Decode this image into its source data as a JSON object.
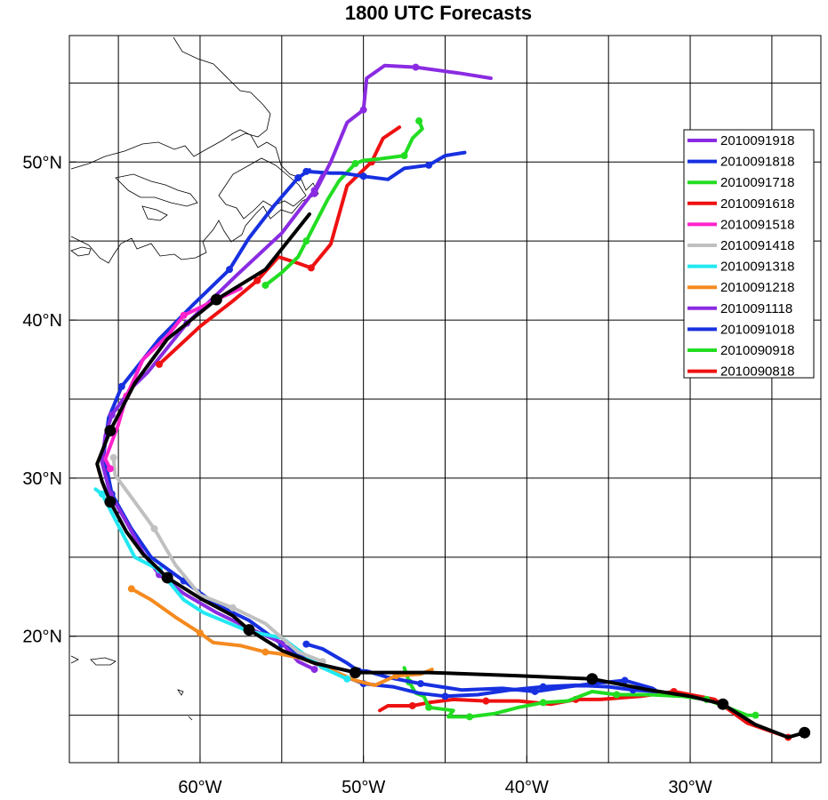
{
  "title": "1800 UTC Forecasts",
  "chart_data": {
    "type": "map-tracks",
    "region": "North Atlantic",
    "lon_range": [
      -68,
      -22
    ],
    "lat_range": [
      12,
      58
    ],
    "x_ticks": [
      {
        "lon": -60,
        "label": "60°W"
      },
      {
        "lon": -50,
        "label": "50°W"
      },
      {
        "lon": -40,
        "label": "40°W"
      },
      {
        "lon": -30,
        "label": "30°W"
      }
    ],
    "y_ticks": [
      {
        "lat": 20,
        "label": "20°N"
      },
      {
        "lat": 30,
        "label": "30°N"
      },
      {
        "lat": 40,
        "label": "40°N"
      },
      {
        "lat": 50,
        "label": "50°N"
      }
    ],
    "grid_lons": [
      -65,
      -60,
      -55,
      -50,
      -45,
      -40,
      -35,
      -30,
      -25
    ],
    "grid_lats": [
      15,
      20,
      25,
      30,
      35,
      40,
      45,
      50,
      55
    ],
    "best_track": {
      "color": "#000000",
      "points": [
        [
          -23,
          13.9
        ],
        [
          -24,
          13.6
        ],
        [
          -26,
          14.4
        ],
        [
          -28,
          15.7
        ],
        [
          -30,
          16.2
        ],
        [
          -32.5,
          16.6
        ],
        [
          -36,
          17.3
        ],
        [
          -40.5,
          17.5
        ],
        [
          -46,
          17.7
        ],
        [
          -50.5,
          17.7
        ],
        [
          -53,
          18.3
        ],
        [
          -55,
          19.1
        ],
        [
          -57,
          20.4
        ],
        [
          -58,
          21.3
        ],
        [
          -60,
          22.4
        ],
        [
          -62,
          23.7
        ],
        [
          -63.5,
          25.2
        ],
        [
          -64.5,
          26.6
        ],
        [
          -65.5,
          28.5
        ],
        [
          -66,
          29.8
        ],
        [
          -66.3,
          30.9
        ],
        [
          -65.5,
          33
        ],
        [
          -64,
          36
        ],
        [
          -62,
          38.8
        ],
        [
          -59,
          41.3
        ],
        [
          -56,
          43.2
        ],
        [
          -53.3,
          46.7
        ]
      ]
    },
    "legend_position": "right",
    "series": [
      {
        "name": "2010091918",
        "color": "#8a2be2",
        "points": [
          [
            -53,
            48
          ],
          [
            -52,
            50
          ],
          [
            -51,
            52.5
          ],
          [
            -50,
            53.3
          ],
          [
            -49.8,
            55.3
          ],
          [
            -48.7,
            56.1
          ],
          [
            -46.8,
            56
          ],
          [
            -44,
            55.6
          ],
          [
            -42.2,
            55.3
          ]
        ]
      },
      {
        "name": "2010091818",
        "color": "#1730e0",
        "points": [
          [
            -53.5,
            49.4
          ],
          [
            -52,
            49.3
          ],
          [
            -51.3,
            49.3
          ],
          [
            -50,
            49.1
          ],
          [
            -48.5,
            48.9
          ],
          [
            -47.5,
            49.6
          ],
          [
            -46,
            49.8
          ],
          [
            -45,
            50.4
          ],
          [
            -43.8,
            50.6
          ]
        ]
      },
      {
        "name": "2010091718",
        "color": "#22dd22",
        "points": [
          [
            -56,
            42.2
          ],
          [
            -55,
            43
          ],
          [
            -54,
            44
          ],
          [
            -53.5,
            45
          ],
          [
            -52.2,
            47.6
          ],
          [
            -51.5,
            48.8
          ],
          [
            -50.5,
            49.9
          ],
          [
            -50,
            50.1
          ],
          [
            -49,
            50.2
          ],
          [
            -47.5,
            50.4
          ],
          [
            -47,
            51.5
          ],
          [
            -46.4,
            52.1
          ],
          [
            -46.6,
            52.6
          ]
        ]
      },
      {
        "name": "2010091618",
        "color": "#ee1111",
        "points": [
          [
            -62.5,
            37.2
          ],
          [
            -60,
            39.6
          ],
          [
            -58,
            41.2
          ],
          [
            -56.5,
            42.5
          ],
          [
            -55.2,
            44
          ],
          [
            -54,
            43.6
          ],
          [
            -53.2,
            43.3
          ],
          [
            -52,
            44.8
          ],
          [
            -51,
            48.5
          ],
          [
            -49.5,
            50
          ],
          [
            -48.8,
            51.5
          ],
          [
            -47.8,
            52.2
          ]
        ]
      },
      {
        "name": "2010091518",
        "color": "#ff22cc",
        "points": [
          [
            -65.5,
            30.6
          ],
          [
            -65.8,
            31.2
          ],
          [
            -65,
            33.4
          ],
          [
            -64.5,
            35.2
          ],
          [
            -63.5,
            37.5
          ],
          [
            -62,
            39
          ],
          [
            -61,
            40.3
          ],
          [
            -59,
            41.3
          ],
          [
            -57.5,
            42
          ]
        ]
      },
      {
        "name": "2010091418",
        "color": "#c0c0c0",
        "points": [
          [
            -52.5,
            18.4
          ],
          [
            -54,
            19
          ],
          [
            -56,
            20.8
          ],
          [
            -58,
            21.8
          ],
          [
            -60,
            22.6
          ],
          [
            -61.5,
            24.5
          ],
          [
            -62.8,
            26.8
          ],
          [
            -64,
            28.5
          ],
          [
            -65.2,
            30.2
          ],
          [
            -65.3,
            31.3
          ]
        ]
      },
      {
        "name": "2010091318",
        "color": "#22e8f2",
        "points": [
          [
            -51,
            17.3
          ],
          [
            -52.5,
            18
          ],
          [
            -55,
            19.9
          ],
          [
            -57,
            20.3
          ],
          [
            -59.8,
            21.5
          ],
          [
            -61,
            22.3
          ],
          [
            -62.5,
            24.2
          ],
          [
            -64,
            25
          ],
          [
            -65,
            27
          ],
          [
            -66,
            29
          ],
          [
            -66.4,
            29.3
          ]
        ]
      },
      {
        "name": "2010091218",
        "color": "#f58a1f",
        "points": [
          [
            -64.2,
            23
          ],
          [
            -63,
            22.3
          ],
          [
            -61.5,
            21.2
          ],
          [
            -60,
            20.2
          ],
          [
            -59.2,
            19.6
          ],
          [
            -57.5,
            19.4
          ],
          [
            -56,
            19
          ],
          [
            -55.2,
            18.9
          ],
          [
            -53.8,
            18.6
          ],
          [
            -52.5,
            18.1
          ],
          [
            -50.5,
            17.2
          ],
          [
            -49.3,
            16.9
          ],
          [
            -48,
            17.5
          ],
          [
            -46.5,
            17.6
          ],
          [
            -45.8,
            17.9
          ]
        ]
      },
      {
        "name": "2010091118",
        "color": "#8a2be2",
        "points": [
          [
            -53,
            17.9
          ],
          [
            -54,
            18.4
          ],
          [
            -55,
            19.6
          ],
          [
            -57,
            20.5
          ],
          [
            -59,
            21.5
          ],
          [
            -61,
            22.7
          ],
          [
            -62.5,
            23.9
          ],
          [
            -63.5,
            25.3
          ],
          [
            -64.5,
            27.2
          ],
          [
            -65.5,
            29
          ],
          [
            -66,
            31
          ],
          [
            -65.8,
            32.7
          ],
          [
            -65.4,
            34
          ],
          [
            -64.2,
            35.7
          ],
          [
            -63.2,
            36.7
          ],
          [
            -60.8,
            39.8
          ],
          [
            -57.8,
            42.8
          ],
          [
            -55,
            45.5
          ],
          [
            -53,
            48.2
          ],
          [
            -52.5,
            49.2
          ]
        ]
      },
      {
        "name": "2010091018",
        "color": "#1730e0",
        "points": [
          [
            -53.5,
            19.5
          ],
          [
            -52.5,
            19.2
          ],
          [
            -51,
            18.3
          ],
          [
            -50.3,
            17.8
          ],
          [
            -49.8,
            17.8
          ],
          [
            -48.5,
            17.4
          ],
          [
            -46.5,
            17
          ],
          [
            -44,
            16.6
          ],
          [
            -41.5,
            16.7
          ],
          [
            -39.5,
            16.5
          ],
          [
            -37.5,
            16.8
          ],
          [
            -36,
            17
          ],
          [
            -34,
            17.2
          ],
          [
            -32.3,
            16.7
          ],
          [
            -32,
            16.5
          ],
          [
            -33.5,
            16.6
          ],
          [
            -35,
            16.8
          ],
          [
            -37,
            16.9
          ],
          [
            -39,
            16.8
          ],
          [
            -41,
            16.6
          ],
          [
            -43,
            16.3
          ],
          [
            -45,
            16.2
          ],
          [
            -46.6,
            16.4
          ],
          [
            -48.2,
            16.8
          ],
          [
            -50,
            17
          ],
          [
            -51,
            17.4
          ],
          [
            -53,
            18.3
          ],
          [
            -55,
            19.5
          ],
          [
            -57,
            21
          ],
          [
            -59,
            22
          ],
          [
            -61,
            23.5
          ],
          [
            -63,
            25
          ],
          [
            -64.2,
            26.8
          ],
          [
            -65.4,
            29
          ],
          [
            -65.9,
            31.5
          ],
          [
            -65.6,
            33.8
          ],
          [
            -64.8,
            35.8
          ],
          [
            -62.5,
            38.8
          ],
          [
            -60.5,
            40.9
          ],
          [
            -58.2,
            43.2
          ],
          [
            -57,
            45.2
          ],
          [
            -55.5,
            47.2
          ],
          [
            -54,
            49
          ],
          [
            -53.3,
            49.5
          ]
        ]
      },
      {
        "name": "2010090918",
        "color": "#22dd22",
        "points": [
          [
            -26,
            15
          ],
          [
            -26.5,
            15
          ],
          [
            -27.5,
            15.4
          ],
          [
            -29,
            16
          ],
          [
            -30.5,
            16.2
          ],
          [
            -32.5,
            16.3
          ],
          [
            -34.5,
            16.3
          ],
          [
            -36,
            16.5
          ],
          [
            -37.5,
            15.9
          ],
          [
            -39,
            15.8
          ],
          [
            -40.5,
            15.5
          ],
          [
            -42,
            15.1
          ],
          [
            -43.5,
            14.9
          ],
          [
            -44.8,
            14.9
          ],
          [
            -44.5,
            15.3
          ],
          [
            -46,
            15.5
          ],
          [
            -46.3,
            16.2
          ],
          [
            -46.8,
            16.4
          ],
          [
            -47.2,
            17.1
          ],
          [
            -47.5,
            18
          ]
        ]
      },
      {
        "name": "2010090818",
        "color": "#ee1111",
        "points": [
          [
            -24,
            13.6
          ],
          [
            -26.5,
            14.5
          ],
          [
            -28.5,
            16
          ],
          [
            -31,
            16.5
          ],
          [
            -33,
            16.2
          ],
          [
            -35.5,
            16
          ],
          [
            -37,
            16
          ],
          [
            -38.5,
            15.7
          ],
          [
            -40.5,
            15.9
          ],
          [
            -42.5,
            15.9
          ],
          [
            -44.5,
            16
          ],
          [
            -46,
            15.8
          ],
          [
            -47,
            15.6
          ],
          [
            -48.5,
            15.6
          ],
          [
            -49,
            15.3
          ]
        ]
      }
    ]
  }
}
